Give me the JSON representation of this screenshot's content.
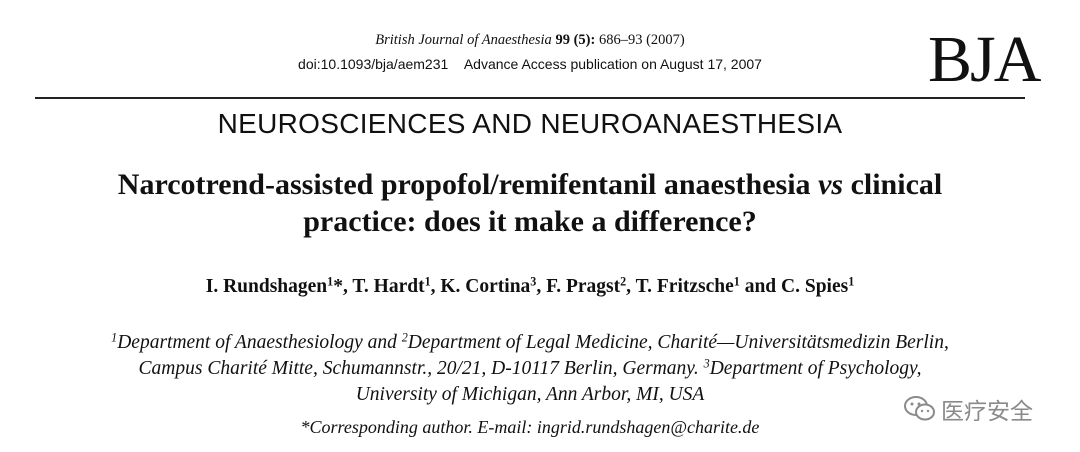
{
  "header": {
    "journal": "British Journal of Anaesthesia",
    "volume": "99",
    "issue": "(5):",
    "pages": "686–93 (2007)",
    "doi": "doi:10.1093/bja/aem231",
    "access": "Advance Access publication on August 17, 2007",
    "logo": "BJA"
  },
  "section": "NEUROSCIENCES AND NEUROANAESTHESIA",
  "title": {
    "line1": [
      {
        "text": "Narcotrend-assisted propofol/remifentanil anaesthesia"
      },
      {
        "italic": "vs"
      },
      {
        "text": "clinical"
      }
    ],
    "line2": "practice: does it make a difference?"
  },
  "authors": [
    {
      "name": "I. Rundshagen",
      "sup": "1",
      "after": "*,"
    },
    {
      "name": "T. Hardt",
      "sup": "1",
      "after": ","
    },
    {
      "name": "K. Cortina",
      "sup": "3",
      "after": ","
    },
    {
      "name": "F. Pragst",
      "sup": "2",
      "after": ","
    },
    {
      "name": "T. Fritzsche",
      "sup": "1",
      "after": " and"
    },
    {
      "name": "C. Spies",
      "sup": "1"
    }
  ],
  "affiliations": [
    [
      {
        "sup": "1"
      },
      {
        "text": "Department of Anaesthesiology and "
      },
      {
        "sup": "2"
      },
      {
        "text": "Department of Legal Medicine, Charité—Universitätsmedizin Berlin,"
      }
    ],
    [
      {
        "text": "Campus Charité Mitte, Schumannstr., 20/21, D-10117 Berlin, Germany. "
      },
      {
        "sup": "3"
      },
      {
        "text": "Department of Psychology,"
      }
    ],
    [
      {
        "text": "University of Michigan, Ann Arbor, MI, USA"
      }
    ]
  ],
  "corresponding": "*Corresponding author. E-mail: ingrid.rundshagen@charite.de",
  "watermark": "医疗安全"
}
